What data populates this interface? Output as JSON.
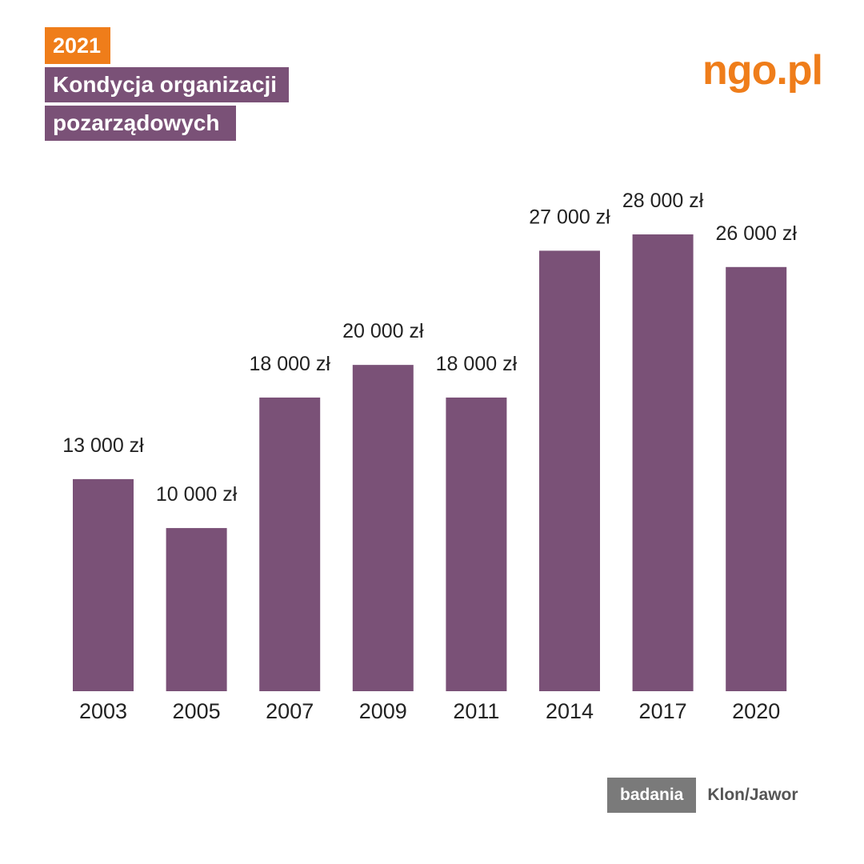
{
  "header": {
    "year": "2021",
    "title_line1": "Kondycja organizacji",
    "title_line2": "pozarządowych"
  },
  "logo": {
    "text": "ngo.pl"
  },
  "footer": {
    "badge": "badania",
    "source": "Klon/Jawor"
  },
  "colors": {
    "bar": "#7a5177",
    "accent": "#ef7d1a",
    "footer_badge": "#7a7a7a"
  },
  "chart_data": {
    "type": "bar",
    "title": "",
    "xlabel": "",
    "ylabel": "",
    "categories": [
      "2003",
      "2005",
      "2007",
      "2009",
      "2011",
      "2014",
      "2017",
      "2020"
    ],
    "values": [
      13000,
      10000,
      18000,
      20000,
      18000,
      27000,
      28000,
      26000
    ],
    "value_labels": [
      "13 000 zł",
      "10 000 zł",
      "18 000 zł",
      "20 000 zł",
      "18 000 zł",
      "27 000 zł",
      "28 000 zł",
      "26 000 zł"
    ],
    "ylim": [
      0,
      28000
    ],
    "grid": false,
    "legend": "none"
  }
}
